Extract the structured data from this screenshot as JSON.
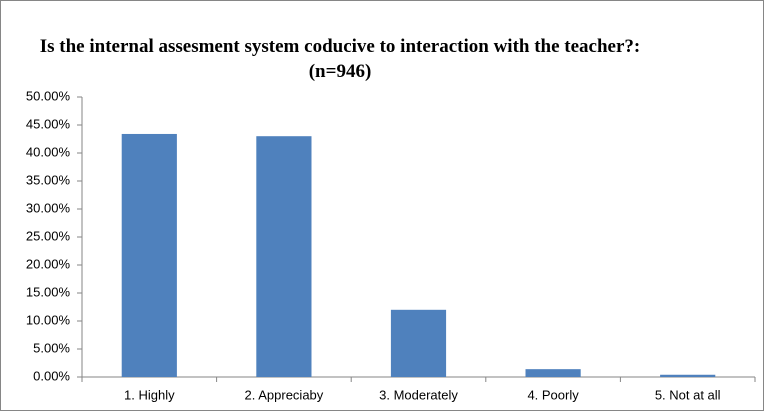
{
  "chart_data": {
    "type": "bar",
    "title": "Is the internal assesment system coducive to interaction with the teacher?:(n=946)",
    "categories": [
      "1. Highly",
      "2. Appreciaby",
      "3. Moderately",
      "4. Poorly",
      "5. Not at all"
    ],
    "values": [
      43.4,
      43.0,
      12.0,
      1.4,
      0.4
    ],
    "color": "#4f81bd",
    "ylim": [
      0,
      50
    ],
    "yticks": [
      {
        "value": 0,
        "label": "0.00%"
      },
      {
        "value": 5,
        "label": "5.00%"
      },
      {
        "value": 10,
        "label": "10.00%"
      },
      {
        "value": 15,
        "label": "15.00%"
      },
      {
        "value": 20,
        "label": "20.00%"
      },
      {
        "value": 25,
        "label": "25.00%"
      },
      {
        "value": 30,
        "label": "30.00%"
      },
      {
        "value": 35,
        "label": "35.00%"
      },
      {
        "value": 40,
        "label": "40.00%"
      },
      {
        "value": 45,
        "label": "45.00%"
      },
      {
        "value": 50,
        "label": "50.00%"
      }
    ],
    "grid": false
  }
}
